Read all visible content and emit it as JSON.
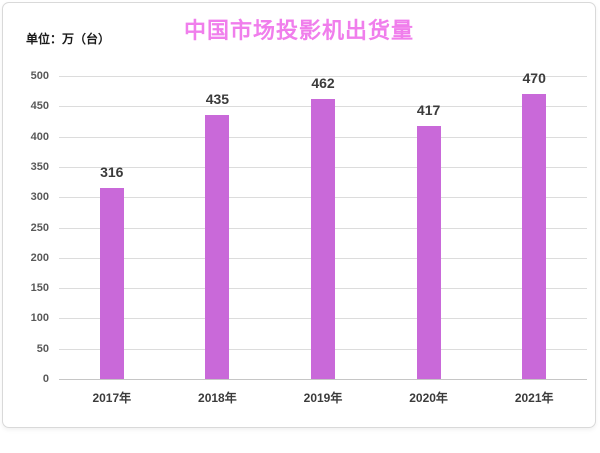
{
  "card": {
    "title": "中国市场投影机出货量",
    "unit_label": "单位：万（台）"
  },
  "chart_data": {
    "type": "bar",
    "title": "中国市场投影机出货量",
    "unit_label": "单位：万（台）",
    "categories": [
      "2017年",
      "2018年",
      "2019年",
      "2020年",
      "2021年"
    ],
    "values": [
      316,
      435,
      462,
      417,
      470
    ],
    "xlabel": "",
    "ylabel": "",
    "ylim": [
      0,
      500
    ],
    "ytick_step": 50,
    "yticks": [
      0,
      50,
      100,
      150,
      200,
      250,
      300,
      350,
      400,
      450,
      500
    ],
    "grid": true,
    "legend": "none",
    "colors": {
      "bar": "#c969d9",
      "title": "#f07eec",
      "value_label": "#3b3b3b",
      "axis_text": "#595959",
      "gridline": "#dcdcdc",
      "baseline": "#c6c6c6",
      "card_border": "#d9d9d9",
      "background": "#ffffff"
    }
  }
}
